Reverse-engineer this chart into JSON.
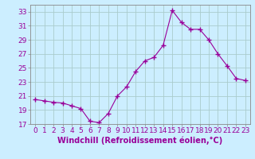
{
  "x": [
    0,
    1,
    2,
    3,
    4,
    5,
    6,
    7,
    8,
    9,
    10,
    11,
    12,
    13,
    14,
    15,
    16,
    17,
    18,
    19,
    20,
    21,
    22,
    23
  ],
  "y": [
    20.5,
    20.3,
    20.1,
    20.0,
    19.6,
    19.2,
    17.4,
    17.2,
    18.5,
    21.0,
    22.3,
    24.5,
    26.0,
    26.5,
    28.2,
    33.2,
    31.5,
    30.5,
    30.5,
    29.0,
    27.0,
    25.3,
    23.5,
    23.2
  ],
  "line_color": "#990099",
  "marker": "+",
  "marker_size": 5,
  "marker_lw": 1.0,
  "bg_color": "#cceeff",
  "grid_color": "#aacccc",
  "xlabel": "Windchill (Refroidissement éolien,°C)",
  "xlabel_fontsize": 7,
  "tick_label_fontsize": 6.5,
  "tick_color": "#990099",
  "spine_color": "#888888",
  "xlim": [
    -0.5,
    23.5
  ],
  "ylim": [
    17,
    34
  ],
  "yticks": [
    17,
    19,
    21,
    23,
    25,
    27,
    29,
    31,
    33
  ],
  "xticks": [
    0,
    1,
    2,
    3,
    4,
    5,
    6,
    7,
    8,
    9,
    10,
    11,
    12,
    13,
    14,
    15,
    16,
    17,
    18,
    19,
    20,
    21,
    22,
    23
  ]
}
